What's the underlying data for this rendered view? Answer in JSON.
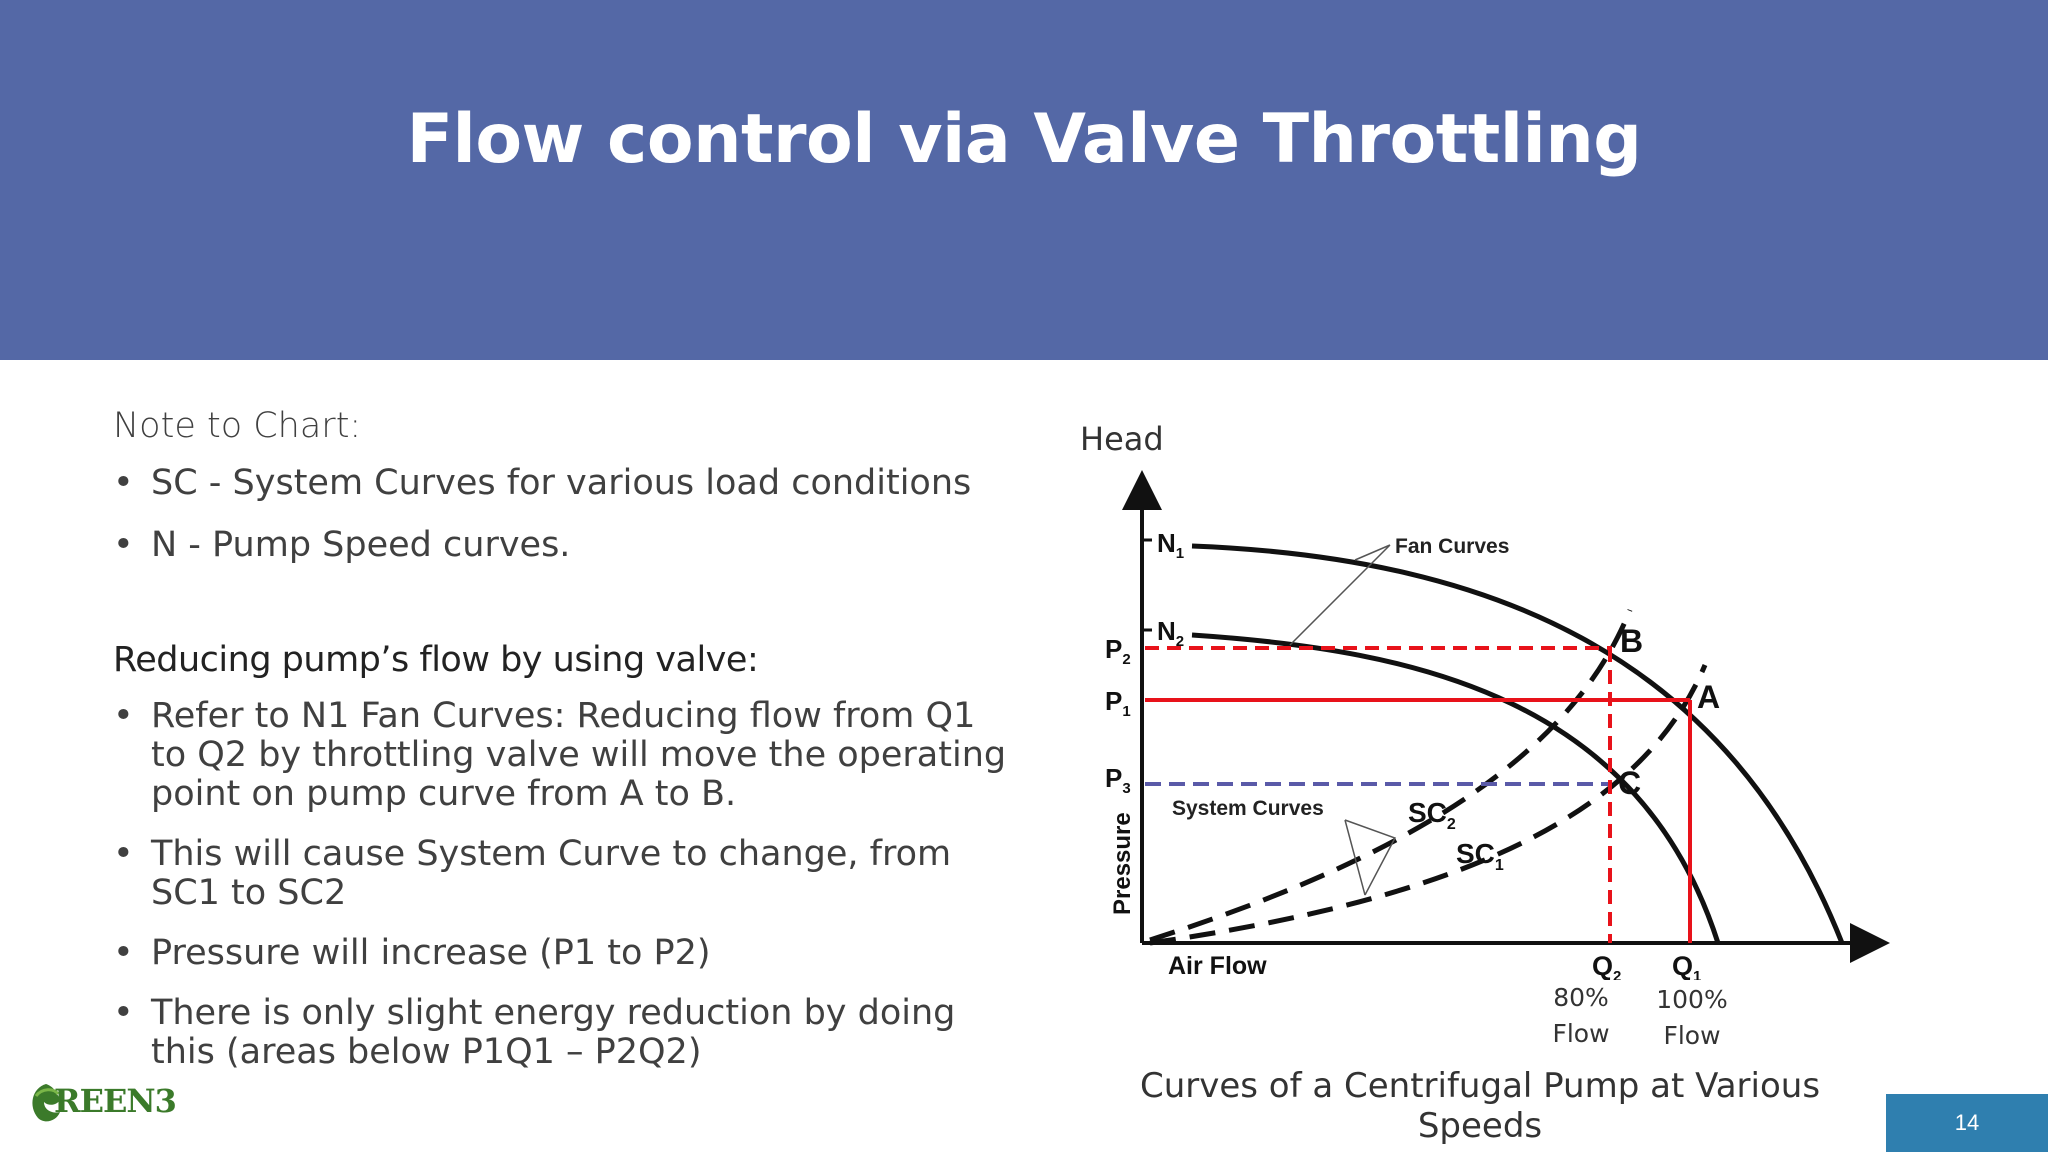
{
  "slide": {
    "title": "Flow control via Valve Throttling",
    "page_number": "14"
  },
  "notes": {
    "heading": "Note to Chart:",
    "items": [
      "SC - System Curves for various load conditions",
      "N - Pump Speed curves."
    ]
  },
  "valve": {
    "heading": "Reducing pump’s flow by using valve",
    "heading_suffix": ":",
    "items": [
      "Refer to N1 Fan Curves: Reducing flow from Q1 to Q2 by throttling valve will move the operating point on pump curve from A to B.",
      "This will cause System Curve to change, from SC1 to SC2",
      "Pressure will increase (P1 to P2)",
      "There is only slight energy reduction by doing this (areas below P1Q1 – P2Q2)"
    ]
  },
  "diagram": {
    "head_label": "Head",
    "y_axis_label": "Pressure",
    "x_axis_label": "Air Flow",
    "fan_curves_label": "Fan Curves",
    "system_curves_label": "System Curves",
    "n1_label": "N",
    "n1_sub": "1",
    "n2_label": "N",
    "n2_sub": "2",
    "p1_label": "P",
    "p1_sub": "1",
    "p2_label": "P",
    "p2_sub": "2",
    "p3_label": "P",
    "p3_sub": "3",
    "q1_label": "Q",
    "q1_sub": "1",
    "q2_label": "Q",
    "q2_sub": "2",
    "sc1_label": "SC",
    "sc1_sub": "1",
    "sc2_label": "SC",
    "sc2_sub": "2",
    "point_a": "A",
    "point_b": "B",
    "point_c": "C",
    "q2_pct": "80%",
    "q2_flow": "Flow",
    "q1_pct": "100%",
    "q1_flow": "Flow",
    "caption": "Curves of a Centrifugal Pump at Various Speeds",
    "colors": {
      "operating_lines": "#e8121a",
      "p3_line": "#5a5aa8",
      "p2_line": "#e8121a",
      "curves": "#111111"
    }
  },
  "logo": {
    "text": "REEN3",
    "icon": "green3-leaf-icon"
  }
}
